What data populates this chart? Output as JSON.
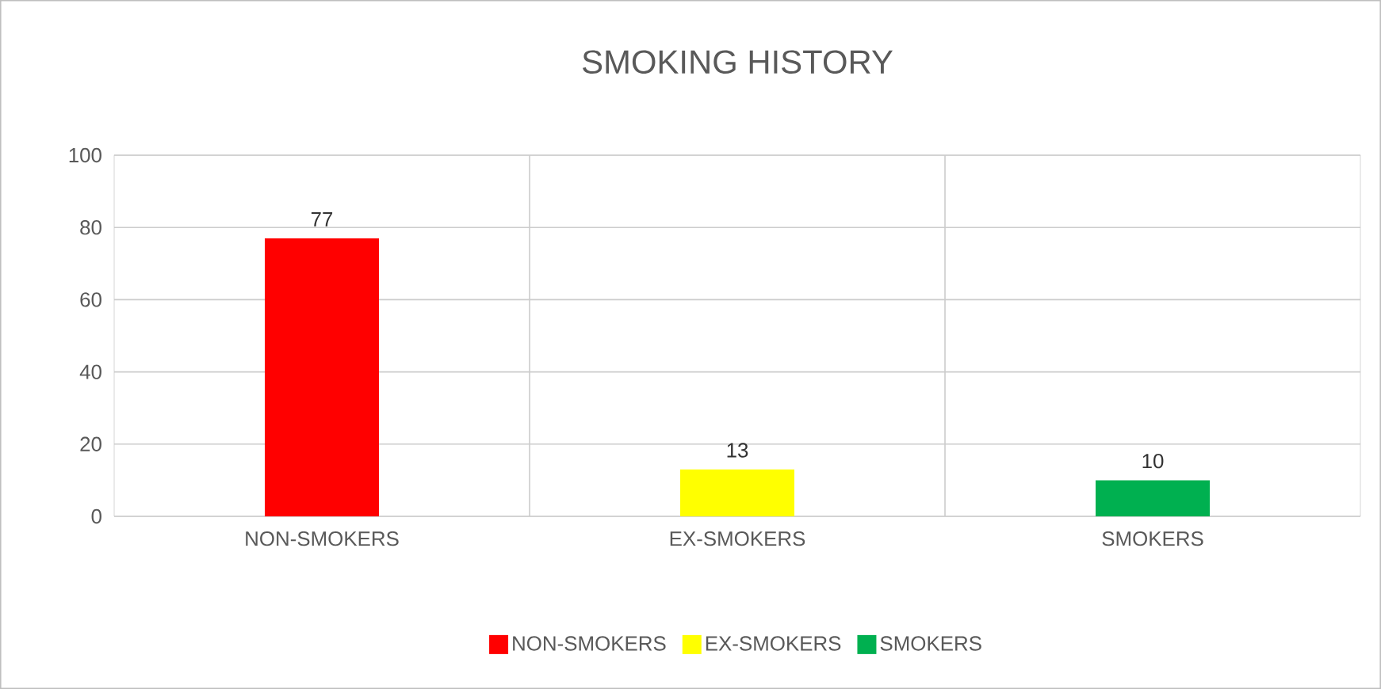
{
  "chart_data": {
    "type": "bar",
    "title": "SMOKING HISTORY",
    "categories": [
      "NON-SMOKERS",
      "EX-SMOKERS",
      "SMOKERS"
    ],
    "series": [
      {
        "name": "NON-SMOKERS",
        "color": "#ff0000",
        "values": [
          77,
          null,
          null
        ]
      },
      {
        "name": "EX-SMOKERS",
        "color": "#ffff00",
        "values": [
          null,
          13,
          null
        ]
      },
      {
        "name": "SMOKERS",
        "color": "#00b050",
        "values": [
          null,
          null,
          10
        ]
      }
    ],
    "ylim": [
      0,
      100
    ],
    "yticks": [
      0,
      20,
      40,
      60,
      80,
      100
    ],
    "grid": true,
    "data_labels": true,
    "legend": "bottom"
  }
}
